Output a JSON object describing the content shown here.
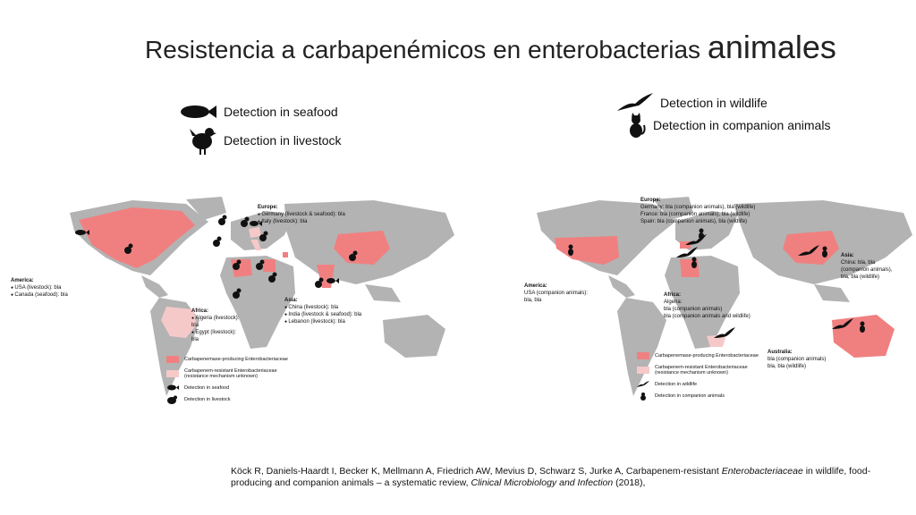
{
  "title": {
    "main": "Resistencia a carbapenémicos en enterobacterias",
    "emphasis": "animales"
  },
  "legends": {
    "seafood": "Detection in seafood",
    "livestock": "Detection in livestock",
    "wildlife": "Detection in wildlife",
    "companion": "Detection in companion animals"
  },
  "left_map": {
    "europe": {
      "heading": "Europe:",
      "l1": "Germany (livestock & seafood): bla",
      "l2": "Italy (livestock): bla"
    },
    "america": {
      "heading": "America:",
      "l1": "USA (livestock): bla",
      "l2": "Canada (seafood): bla"
    },
    "africa": {
      "heading": "Africa:",
      "l1": "Algeria (livestock):",
      "l2": "bla",
      "l3": "Egypt (livestock):",
      "l4": "bla"
    },
    "asia": {
      "heading": "Asia:",
      "l1": "China (livestock): bla",
      "l2": "India (livestock & seafood): bla",
      "l3": "Lebanon (livestock): bla"
    },
    "key": {
      "producing": "Carbapenemase-producing Enterobacteriaceae",
      "resistant1": "Carbapenem-resistant Enterobacteriaceae",
      "resistant2": "(resistance mechanism unknown)",
      "seafood": "Detection in seafood",
      "livestock": "Detection in livestock"
    }
  },
  "right_map": {
    "europe": {
      "heading": "Europe:",
      "l1": "Germany: bla (companion animals), bla (wildlife)",
      "l2": "France: bla (companion animals), bla (wildlife)",
      "l3": "Spain: bla (companion animals), bla (wildlife)"
    },
    "america": {
      "heading": "America:",
      "l1": "USA (companion animals):",
      "l2": "bla, bla"
    },
    "africa": {
      "heading": "Africa:",
      "l1": "Algeria:",
      "l2": "bla (companion animals)",
      "l3": "bla (companion animals and wildlife)"
    },
    "asia": {
      "heading": "Asia:",
      "l1": "China: bla, bla",
      "l2": "(companion animals),",
      "l3": "bla, bla (wildlife)"
    },
    "australia": {
      "heading": "Australia:",
      "l1": "bla (companion animals)",
      "l2": "bla, bla (wildlife)"
    },
    "key": {
      "producing": "Carbapenemase-producing Enterobacteriaceae",
      "resistant1": "Carbapenem-resistant Enterobacteriaceae",
      "resistant2": "(resistance mechanism unknown)",
      "wildlife": "Detection in wildlife",
      "companion": "Detection in companion animals"
    }
  },
  "citation": {
    "part1": "Köck R, Daniels-Haardt I, Becker K, Mellmann A, Friedrich AW, Mevius D, Schwarz S, Jurke A, Carbapenem-resistant ",
    "italic1": "Enterobacteriaceae",
    "part2": " in wildlife, food-producing and companion animals – a systematic review, ",
    "italic2": "Clinical Microbiology and Infection",
    "part3": " (2018),"
  },
  "colors": {
    "land": "#b3b3b3",
    "producing": "#f08080",
    "resistant": "#f6c9c9",
    "icon": "#111111"
  }
}
